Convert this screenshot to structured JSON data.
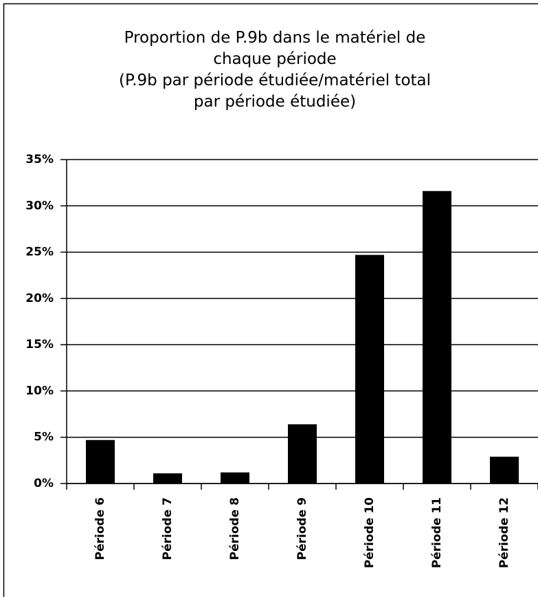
{
  "chart_data": {
    "type": "bar",
    "title": [
      "Proportion de P.9b dans le matériel de",
      "chaque période",
      "(P.9b par période étudiée/matériel total",
      "par période étudiée)"
    ],
    "categories": [
      "Période 6",
      "Période 7",
      "Période 8",
      "Période 9",
      "Période 10",
      "Période 11",
      "Période 12"
    ],
    "values": [
      4.7,
      1.1,
      1.2,
      6.4,
      24.7,
      31.6,
      2.9
    ],
    "color": "#000000",
    "ylim": [
      0,
      35
    ],
    "yticks": [
      {
        "value": 0,
        "label": "0%"
      },
      {
        "value": 5,
        "label": "5%"
      },
      {
        "value": 10,
        "label": "10%"
      },
      {
        "value": 15,
        "label": "15%"
      },
      {
        "value": 20,
        "label": "20%"
      },
      {
        "value": 25,
        "label": "25%"
      },
      {
        "value": 30,
        "label": "30%"
      },
      {
        "value": 35,
        "label": "35%"
      }
    ],
    "grid": true
  }
}
